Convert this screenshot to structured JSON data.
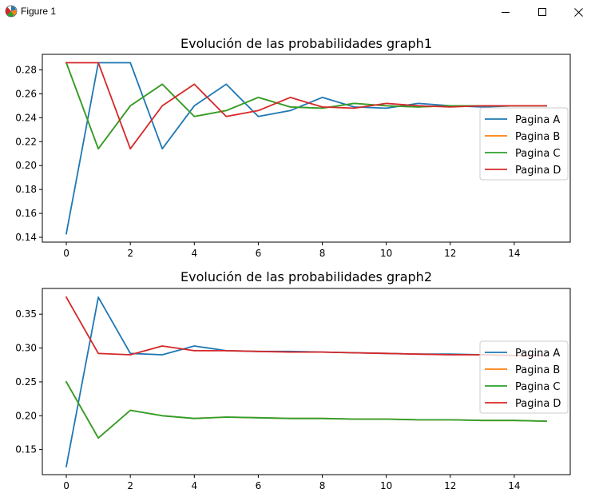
{
  "window": {
    "title": "Figure 1",
    "icon": "matplotlib-icon"
  },
  "controls": {
    "minimize": "minimize-icon",
    "maximize": "maximize-icon",
    "close": "close-icon"
  },
  "colors": {
    "Pagina A": "#1f77b4",
    "Pagina B": "#ff7f0e",
    "Pagina C": "#2ca02c",
    "Pagina D": "#d62728"
  },
  "chart_data": [
    {
      "type": "line",
      "title": "Evolución de las probabilidades graph1",
      "xlabel": "",
      "ylabel": "",
      "x": [
        0,
        1,
        2,
        3,
        4,
        5,
        6,
        7,
        8,
        9,
        10,
        11,
        12,
        13,
        14,
        15
      ],
      "xticks": [
        0,
        2,
        4,
        6,
        8,
        10,
        12,
        14
      ],
      "yticks": [
        0.14,
        0.16,
        0.18,
        0.2,
        0.22,
        0.24,
        0.26,
        0.28
      ],
      "ytick_labels": [
        "0.14",
        "0.16",
        "0.18",
        "0.20",
        "0.22",
        "0.24",
        "0.26",
        "0.28"
      ],
      "xlim": [
        -0.75,
        15.75
      ],
      "ylim": [
        0.136,
        0.293
      ],
      "legend": "center-right",
      "grid": false,
      "series": [
        {
          "name": "Pagina A",
          "values": [
            0.143,
            0.286,
            0.286,
            0.214,
            0.25,
            0.268,
            0.241,
            0.246,
            0.257,
            0.249,
            0.248,
            0.252,
            0.25,
            0.249,
            0.25,
            0.25
          ]
        },
        {
          "name": "Pagina B",
          "values": [
            0.286,
            0.214,
            0.25,
            0.268,
            0.241,
            0.246,
            0.257,
            0.249,
            0.248,
            0.252,
            0.25,
            0.249,
            0.25,
            0.25,
            0.25,
            0.25
          ]
        },
        {
          "name": "Pagina C",
          "values": [
            0.286,
            0.214,
            0.25,
            0.268,
            0.241,
            0.246,
            0.257,
            0.249,
            0.248,
            0.252,
            0.25,
            0.249,
            0.25,
            0.25,
            0.25,
            0.25
          ]
        },
        {
          "name": "Pagina D",
          "values": [
            0.286,
            0.286,
            0.214,
            0.25,
            0.268,
            0.241,
            0.246,
            0.257,
            0.249,
            0.248,
            0.252,
            0.25,
            0.249,
            0.25,
            0.25,
            0.25
          ]
        }
      ]
    },
    {
      "type": "line",
      "title": "Evolución de las probabilidades graph2",
      "xlabel": "",
      "ylabel": "",
      "x": [
        0,
        1,
        2,
        3,
        4,
        5,
        6,
        7,
        8,
        9,
        10,
        11,
        12,
        13,
        14,
        15
      ],
      "xticks": [
        0,
        2,
        4,
        6,
        8,
        10,
        12,
        14
      ],
      "yticks": [
        0.15,
        0.2,
        0.25,
        0.3,
        0.35
      ],
      "ytick_labels": [
        "0.15",
        "0.20",
        "0.25",
        "0.30",
        "0.35"
      ],
      "xlim": [
        -0.75,
        15.75
      ],
      "ylim": [
        0.113,
        0.388
      ],
      "legend": "center-right",
      "grid": false,
      "series": [
        {
          "name": "Pagina A",
          "values": [
            0.125,
            0.375,
            0.292,
            0.29,
            0.303,
            0.296,
            0.295,
            0.295,
            0.294,
            0.293,
            0.292,
            0.291,
            0.291,
            0.29,
            0.289,
            0.289
          ]
        },
        {
          "name": "Pagina B",
          "values": [
            0.25,
            0.167,
            0.208,
            0.2,
            0.196,
            0.198,
            0.197,
            0.196,
            0.196,
            0.195,
            0.195,
            0.194,
            0.194,
            0.193,
            0.193,
            0.192
          ]
        },
        {
          "name": "Pagina C",
          "values": [
            0.25,
            0.167,
            0.208,
            0.2,
            0.196,
            0.198,
            0.197,
            0.196,
            0.196,
            0.195,
            0.195,
            0.194,
            0.194,
            0.193,
            0.193,
            0.192
          ]
        },
        {
          "name": "Pagina D",
          "values": [
            0.375,
            0.292,
            0.29,
            0.303,
            0.296,
            0.296,
            0.295,
            0.294,
            0.294,
            0.293,
            0.292,
            0.291,
            0.29,
            0.29,
            0.289,
            0.289
          ]
        }
      ]
    }
  ]
}
